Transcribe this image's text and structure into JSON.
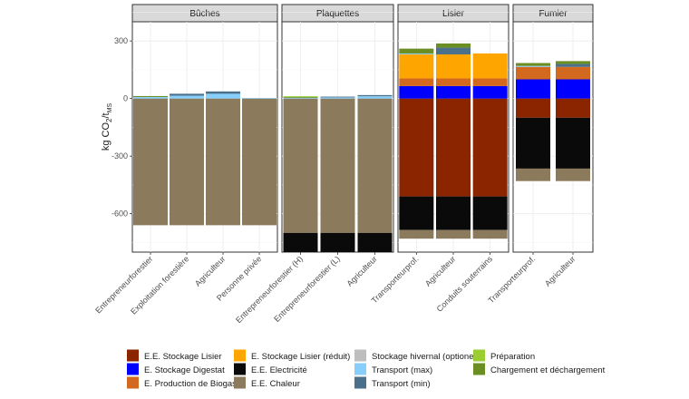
{
  "chart_data": {
    "type": "bar",
    "stacked": true,
    "ylabel": "kg CO₂/t_MS",
    "ylabel_main": "kg CO",
    "ylabel_sub1": "2",
    "ylabel_mid": "/t",
    "ylabel_sub2": "MS",
    "ylim": [
      -800,
      400
    ],
    "yticks": [
      300,
      0,
      -300,
      -600
    ],
    "ytick_labels": [
      "300",
      "0",
      "-300",
      "-600"
    ],
    "grid": true,
    "legend_position": "bottom",
    "colors": {
      "ee_stockage_lisier": "#8B2500",
      "ee_stockage_digestat": "#0000FF",
      "ee_production_biogas": "#D2691E",
      "e_stockage_lisier_reduit": "#FFA500",
      "ee_electricite": "#0A0A0A",
      "ee_chaleur": "#8B7B5C",
      "stockage_hivernal": "#BEBEBE",
      "transport_max": "#87CEFA",
      "transport_min": "#4A708B",
      "preparation": "#9ACD32",
      "chargement": "#6B8E23"
    },
    "legend": [
      {
        "key": "ee_stockage_lisier",
        "label": "E.E. Stockage Lisier"
      },
      {
        "key": "ee_stockage_digestat",
        "label": "E. Stockage Digestat"
      },
      {
        "key": "ee_production_biogas",
        "label": "E. Production de Biogas"
      },
      {
        "key": "e_stockage_lisier_reduit",
        "label": "E. Stockage Lisier (réduit)"
      },
      {
        "key": "ee_electricite",
        "label": "E.E. Electricité"
      },
      {
        "key": "ee_chaleur",
        "label": "E.E. Chaleur"
      },
      {
        "key": "stockage_hivernal",
        "label": "Stockage hivernal (optionel)"
      },
      {
        "key": "transport_max",
        "label": "Transport (max)"
      },
      {
        "key": "transport_min",
        "label": "Transport (min)"
      },
      {
        "key": "preparation",
        "label": "Préparation"
      },
      {
        "key": "chargement",
        "label": "Chargement et déchargement"
      }
    ],
    "panels": [
      {
        "title": "Bûches",
        "categories": [
          {
            "label": "Entrepreneurforestier",
            "segments": [
              {
                "key": "ee_chaleur",
                "value": -660
              },
              {
                "key": "transport_max",
                "value": 8
              },
              {
                "key": "chargement",
                "value": 5
              }
            ]
          },
          {
            "label": "Exploitation forestière",
            "segments": [
              {
                "key": "ee_chaleur",
                "value": -660
              },
              {
                "key": "transport_max",
                "value": 15
              },
              {
                "key": "transport_min",
                "value": 10
              }
            ]
          },
          {
            "label": "Agriculteur",
            "segments": [
              {
                "key": "ee_chaleur",
                "value": -660
              },
              {
                "key": "transport_max",
                "value": 25
              },
              {
                "key": "transport_min",
                "value": 12
              }
            ]
          },
          {
            "label": "Personne privée",
            "segments": [
              {
                "key": "ee_chaleur",
                "value": -660
              },
              {
                "key": "transport_max",
                "value": 3
              }
            ]
          }
        ]
      },
      {
        "title": "Plaquettes",
        "categories": [
          {
            "label": "Entrepreneurforestier (H)",
            "segments": [
              {
                "key": "ee_chaleur",
                "value": -700
              },
              {
                "key": "ee_electricite",
                "value": -100
              },
              {
                "key": "transport_max",
                "value": 4
              },
              {
                "key": "chargement",
                "value": 4
              },
              {
                "key": "preparation",
                "value": 4
              }
            ]
          },
          {
            "label": "Entrepreneurforestier (L)",
            "segments": [
              {
                "key": "ee_chaleur",
                "value": -700
              },
              {
                "key": "ee_electricite",
                "value": -100
              },
              {
                "key": "transport_max",
                "value": 6
              },
              {
                "key": "transport_min",
                "value": 4
              }
            ]
          },
          {
            "label": "Agriculteur",
            "segments": [
              {
                "key": "ee_chaleur",
                "value": -700
              },
              {
                "key": "ee_electricite",
                "value": -100
              },
              {
                "key": "transport_max",
                "value": 12
              },
              {
                "key": "transport_min",
                "value": 6
              }
            ]
          }
        ]
      },
      {
        "title": "Lisier",
        "categories": [
          {
            "label": "Transporteurprof.",
            "segments": [
              {
                "key": "ee_stockage_lisier",
                "value": -510
              },
              {
                "key": "ee_electricite",
                "value": -175
              },
              {
                "key": "ee_chaleur",
                "value": -45
              },
              {
                "key": "ee_stockage_digestat",
                "value": 65
              },
              {
                "key": "ee_production_biogas",
                "value": 40
              },
              {
                "key": "e_stockage_lisier_reduit",
                "value": 125
              },
              {
                "key": "transport_max",
                "value": 5
              },
              {
                "key": "chargement",
                "value": 25
              }
            ]
          },
          {
            "label": "Agriculteur",
            "segments": [
              {
                "key": "ee_stockage_lisier",
                "value": -510
              },
              {
                "key": "ee_electricite",
                "value": -175
              },
              {
                "key": "ee_chaleur",
                "value": -45
              },
              {
                "key": "ee_stockage_digestat",
                "value": 65
              },
              {
                "key": "ee_production_biogas",
                "value": 40
              },
              {
                "key": "e_stockage_lisier_reduit",
                "value": 125
              },
              {
                "key": "transport_min",
                "value": 35
              },
              {
                "key": "chargement",
                "value": 22
              }
            ]
          },
          {
            "label": "Conduits souterrains",
            "segments": [
              {
                "key": "ee_stockage_lisier",
                "value": -510
              },
              {
                "key": "ee_electricite",
                "value": -175
              },
              {
                "key": "ee_chaleur",
                "value": -45
              },
              {
                "key": "ee_stockage_digestat",
                "value": 65
              },
              {
                "key": "ee_production_biogas",
                "value": 40
              },
              {
                "key": "e_stockage_lisier_reduit",
                "value": 130
              }
            ]
          }
        ]
      },
      {
        "title": "Fumier",
        "categories": [
          {
            "label": "Transporteurprof.",
            "segments": [
              {
                "key": "ee_stockage_lisier",
                "value": -100
              },
              {
                "key": "ee_electricite",
                "value": -265
              },
              {
                "key": "ee_chaleur",
                "value": -65
              },
              {
                "key": "ee_stockage_digestat",
                "value": 100
              },
              {
                "key": "ee_production_biogas",
                "value": 65
              },
              {
                "key": "transport_max",
                "value": 5
              },
              {
                "key": "chargement",
                "value": 15
              }
            ]
          },
          {
            "label": "Agriculteur",
            "segments": [
              {
                "key": "ee_stockage_lisier",
                "value": -100
              },
              {
                "key": "ee_electricite",
                "value": -265
              },
              {
                "key": "ee_chaleur",
                "value": -65
              },
              {
                "key": "ee_stockage_digestat",
                "value": 100
              },
              {
                "key": "ee_production_biogas",
                "value": 65
              },
              {
                "key": "transport_min",
                "value": 15
              },
              {
                "key": "chargement",
                "value": 15
              }
            ]
          }
        ]
      }
    ]
  }
}
